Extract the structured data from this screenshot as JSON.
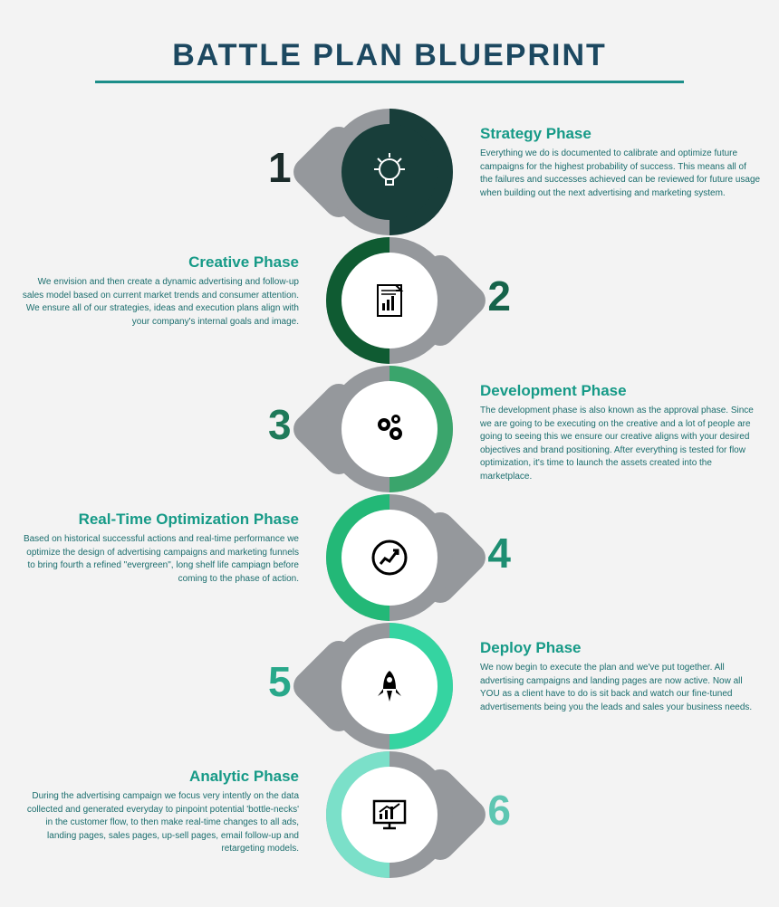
{
  "title": "BATTLE PLAN BLUEPRINT",
  "title_color": "#1c4860",
  "title_fontsize": 34,
  "underline_color": "#1c8e89",
  "bg_color": "#f3f3f3",
  "ring_grey": "#95989c",
  "ring_inner_bg": "#ffffff",
  "body_text_color": "#1a6d6d",
  "phase_spacing": 142,
  "ring_outer_diameter": 140,
  "ring_inner_diameter": 106,
  "phases": [
    {
      "n": "1",
      "side": "right",
      "title": "Strategy Phase",
      "desc": "Everything we do is documented to calibrate and optimize future campaigns for the highest probability of success. This means all of the failures and successes achieved can be reviewed for future usage when building out the next advertising and marketing system.",
      "accent": "#183e3a",
      "num_color": "#1b2b2a",
      "heading_color": "#169a87",
      "icon": "bulb"
    },
    {
      "n": "2",
      "side": "left",
      "title": "Creative Phase",
      "desc": "We envision and then create a dynamic advertising and follow-up sales model based on current market trends and consumer attention. We ensure all of our strategies, ideas and execution plans align with your company's internal goals and image.",
      "accent": "#0f5b32",
      "num_color": "#15634a",
      "heading_color": "#169a87",
      "icon": "doc"
    },
    {
      "n": "3",
      "side": "right",
      "title": "Development Phase",
      "desc": "The development phase is also known as the approval phase. Since we are going to be executing on the creative and a lot of people are going to seeing this we ensure our creative aligns with your desired objectives and brand positioning. After everything is tested for flow optimization, it's time to launch the assets created into the marketplace.",
      "accent": "#3aa56c",
      "num_color": "#1f7a5a",
      "heading_color": "#169a87",
      "icon": "gears"
    },
    {
      "n": "4",
      "side": "left",
      "title": "Real-Time Optimization Phase",
      "desc": "Based on historical successful actions and real-time performance we optimize the design of advertising campaigns and marketing funnels to bring fourth a refined \"evergreen\", long shelf life campiagn before coming to the phase of action.",
      "accent": "#23b877",
      "num_color": "#1e8e72",
      "heading_color": "#169a87",
      "icon": "growth"
    },
    {
      "n": "5",
      "side": "right",
      "title": "Deploy Phase",
      "desc": "We now begin to execute the plan and we've put together. All advertising campaigns and landing pages are now active. Now all YOU as a client have to do is sit back and watch our fine-tuned advertisements being you the leads and sales your business needs.",
      "accent": "#35d4a1",
      "num_color": "#28a88a",
      "heading_color": "#169a87",
      "icon": "rocket"
    },
    {
      "n": "6",
      "side": "left",
      "title": "Analytic Phase",
      "desc": "During the advertising campaign we focus very intently on the data collected and generated everyday to pinpoint potential 'bottle-necks' in the customer flow, to then make real-time changes to all ads, landing pages, sales pages, up-sell pages, email follow-up and retargeting models.",
      "accent": "#7be0c9",
      "num_color": "#5ec6b2",
      "heading_color": "#169a87",
      "icon": "monitor"
    }
  ]
}
